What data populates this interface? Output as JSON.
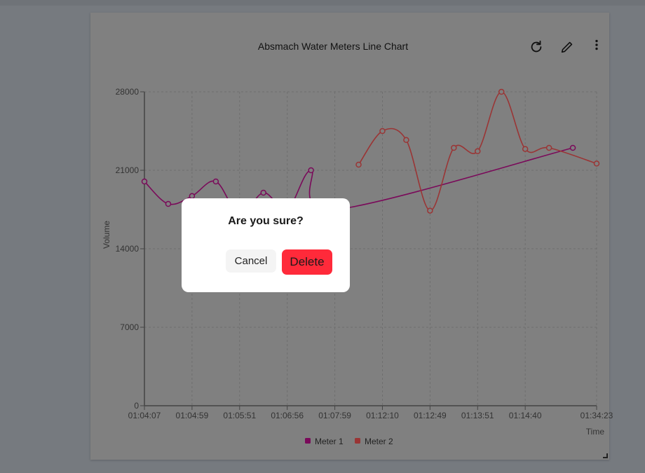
{
  "card": {
    "title": "Absmach Water Meters Line Chart",
    "icons": [
      "refresh-icon",
      "pencil-icon",
      "more-vertical-icon"
    ]
  },
  "dialog": {
    "title": "Are you sure?",
    "cancel_label": "Cancel",
    "delete_label": "Delete",
    "delete_color": "#ff2a3a"
  },
  "chart_data": {
    "type": "line",
    "title": "Absmach Water Meters Line Chart",
    "xlabel": "Time",
    "ylabel": "Volume",
    "ylim": [
      0,
      28000
    ],
    "yticks": [
      "0",
      "7000",
      "14000",
      "21000",
      "28000"
    ],
    "x": [
      "01:04:07",
      "",
      "01:04:59",
      "",
      "01:05:51",
      "",
      "01:06:56",
      "",
      "01:07:59",
      "",
      "01:12:10",
      "",
      "01:12:49",
      "",
      "01:13:51",
      "",
      "01:14:40",
      "",
      "",
      "01:34:23"
    ],
    "grid": true,
    "legend": "bottom",
    "series": [
      {
        "name": "Meter 1",
        "color": "#7a0a5a",
        "values": [
          20000,
          18000,
          18700,
          20000,
          17000,
          19000,
          17500,
          21000,
          17500,
          null,
          null,
          null,
          null,
          null,
          null,
          null,
          null,
          null,
          23000,
          null
        ]
      },
      {
        "name": "Meter 2",
        "color": "#9a3535",
        "values": [
          null,
          null,
          null,
          null,
          null,
          null,
          null,
          null,
          null,
          21500,
          24500,
          23700,
          17400,
          23000,
          22700,
          28000,
          22900,
          23000,
          null,
          21600
        ]
      }
    ]
  }
}
